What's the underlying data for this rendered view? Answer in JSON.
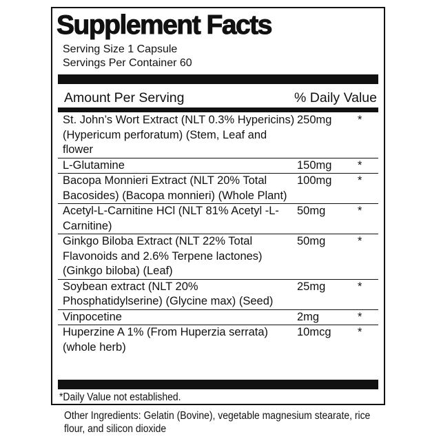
{
  "title": "Supplement Facts",
  "serving_size": "Serving Size 1 Capsule",
  "servings_per_container": "Servings Per Container 60",
  "header": {
    "amount": "Amount Per Serving",
    "dv": "% Daily Value"
  },
  "ingredients": [
    {
      "name": "St. John’s Wort Extract (NLT 0.3% Hypericins) (Hypericum perforatum) (Stem, Leaf and flower",
      "amount": "250mg",
      "dv": "*"
    },
    {
      "name": "L-Glutamine",
      "amount": "150mg",
      "dv": "*"
    },
    {
      "name": "Bacopa Monnieri Extract (NLT 20% Total Bacosides) (Bacopa monnieri) (Whole Plant)",
      "amount": "100mg",
      "dv": "*"
    },
    {
      "name": "Acetyl-L-Carnitine HCl (NLT 81% Acetyl -L-Carnitine)",
      "amount": "50mg",
      "dv": "*"
    },
    {
      "name": "Ginkgo Biloba Extract (NLT 22% Total Flavonoids and 2.6% Terpene lactones) (Ginkgo biloba) (Leaf)",
      "amount": "50mg",
      "dv": "*"
    },
    {
      "name": "Soybean extract (NLT 20% Phosphatidylserine) (Glycine max) (Seed)",
      "amount": "25mg",
      "dv": "*"
    },
    {
      "name": "Vinpocetine",
      "amount": "2mg",
      "dv": "*"
    },
    {
      "name": "Huperzine A 1% (From Huperzia serrata) (whole herb)",
      "amount": "10mcg",
      "dv": "*"
    }
  ],
  "footnote": "*Daily Value not established.",
  "other_ingredients": "Other Ingredients: Gelatin (Bovine), vegetable magnesium stearate, rice flour, and silicon dioxide"
}
